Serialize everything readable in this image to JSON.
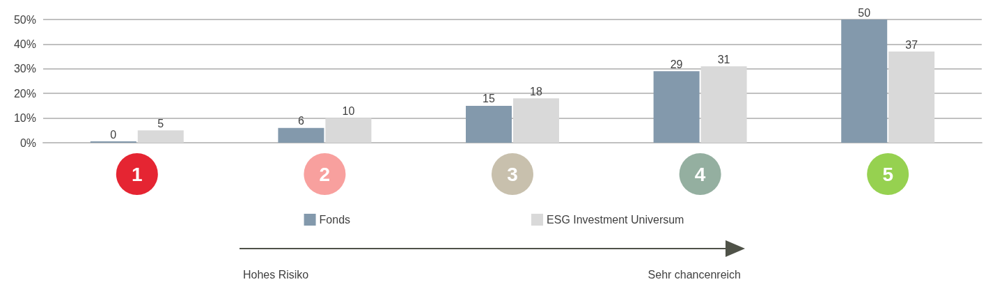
{
  "chart_data": {
    "type": "bar",
    "categories": [
      "1",
      "2",
      "3",
      "4",
      "5"
    ],
    "series": [
      {
        "name": "Fonds",
        "color": "#8399ac",
        "values": [
          0,
          6,
          15,
          29,
          50
        ]
      },
      {
        "name": "ESG Investment Universum",
        "color": "#d9d9d9",
        "values": [
          5,
          10,
          18,
          31,
          37
        ]
      }
    ],
    "ylim": [
      0,
      50
    ],
    "yticks": [
      {
        "value": 0,
        "label": "0%"
      },
      {
        "value": 10,
        "label": "10%"
      },
      {
        "value": 20,
        "label": "20%"
      },
      {
        "value": 30,
        "label": "30%"
      },
      {
        "value": 40,
        "label": "40%"
      },
      {
        "value": 50,
        "label": "50%"
      }
    ],
    "grid": "y",
    "legend": "bottom",
    "data_labels": true,
    "annotations": [
      "Hohes Risiko",
      "Sehr chancenreich"
    ]
  }
}
